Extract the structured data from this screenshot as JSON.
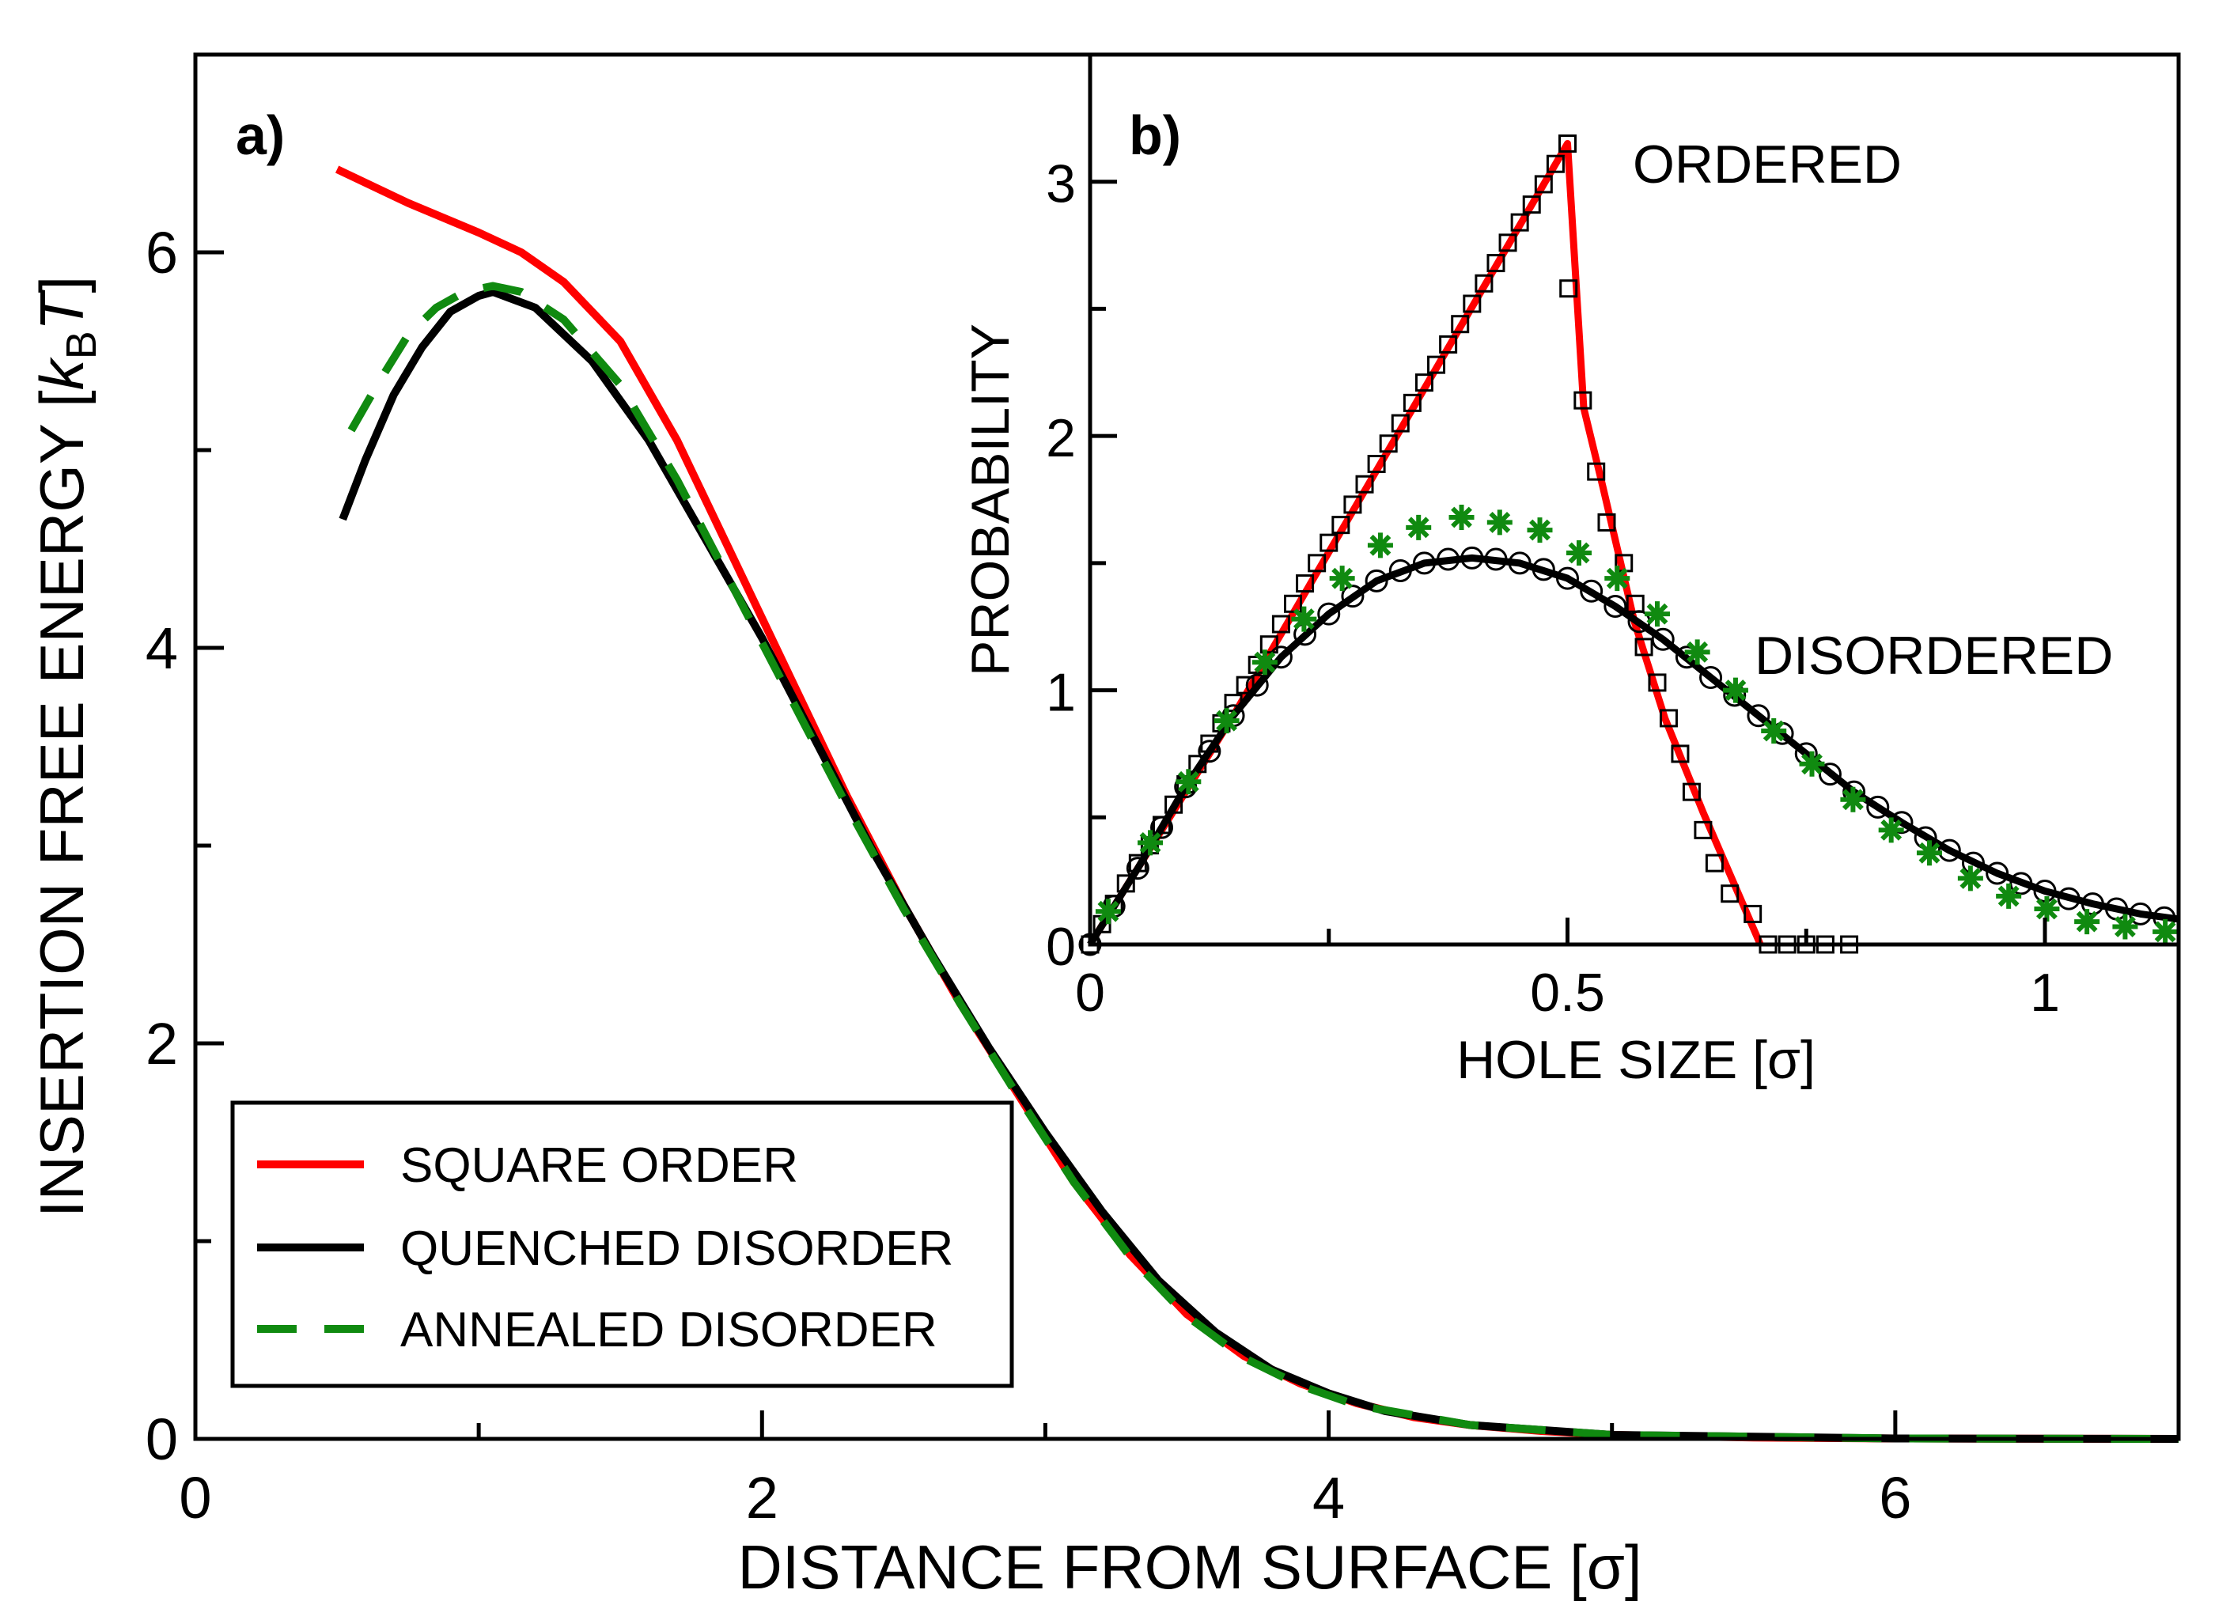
{
  "colors": {
    "red": "#ff0000",
    "black": "#000000",
    "green": "#108a10"
  },
  "chart_data": [
    {
      "type": "line",
      "panel_label": "a)",
      "xlabel": "DISTANCE FROM SURFACE [σ]",
      "ylabel": {
        "pre": "INSERTION FREE ENERGY [",
        "k": "k",
        "sub": "B",
        "T": "T",
        "post": "]"
      },
      "xlim": [
        0,
        7
      ],
      "ylim": [
        0,
        7
      ],
      "xticks": [
        0,
        2,
        4,
        6
      ],
      "xminor": [
        1,
        3,
        5
      ],
      "yticks": [
        0,
        2,
        4,
        6
      ],
      "yminor": [
        1,
        3,
        5
      ],
      "xtick_labels": [
        "0",
        "2",
        "4",
        "6"
      ],
      "ytick_labels": [
        "0",
        "2",
        "4",
        "6"
      ],
      "legend_placement": "bottom-left",
      "series": [
        {
          "name": "SQUARE ORDER",
          "color": "#ff0000",
          "style": "solid",
          "points": [
            [
              0.5,
              6.42
            ],
            [
              0.75,
              6.25
            ],
            [
              1.0,
              6.1
            ],
            [
              1.15,
              6.0
            ],
            [
              1.3,
              5.85
            ],
            [
              1.5,
              5.55
            ],
            [
              1.7,
              5.05
            ],
            [
              1.9,
              4.45
            ],
            [
              2.1,
              3.85
            ],
            [
              2.3,
              3.25
            ],
            [
              2.5,
              2.7
            ],
            [
              2.7,
              2.2
            ],
            [
              2.9,
              1.75
            ],
            [
              3.1,
              1.3
            ],
            [
              3.3,
              0.93
            ],
            [
              3.5,
              0.63
            ],
            [
              3.7,
              0.42
            ],
            [
              3.9,
              0.28
            ],
            [
              4.1,
              0.18
            ],
            [
              4.3,
              0.11
            ],
            [
              4.5,
              0.07
            ],
            [
              4.75,
              0.04
            ],
            [
              5.0,
              0.02
            ],
            [
              5.5,
              0.007
            ],
            [
              6.0,
              0.002
            ],
            [
              7.0,
              0
            ]
          ]
        },
        {
          "name": "QUENCHED DISORDER",
          "color": "#000000",
          "style": "solid",
          "points": [
            [
              0.52,
              4.65
            ],
            [
              0.6,
              4.95
            ],
            [
              0.7,
              5.28
            ],
            [
              0.8,
              5.52
            ],
            [
              0.9,
              5.7
            ],
            [
              1.0,
              5.78
            ],
            [
              1.05,
              5.8
            ],
            [
              1.2,
              5.72
            ],
            [
              1.4,
              5.45
            ],
            [
              1.6,
              5.05
            ],
            [
              1.8,
              4.55
            ],
            [
              2.0,
              4.05
            ],
            [
              2.2,
              3.5
            ],
            [
              2.4,
              2.95
            ],
            [
              2.6,
              2.45
            ],
            [
              2.8,
              1.98
            ],
            [
              3.0,
              1.55
            ],
            [
              3.2,
              1.15
            ],
            [
              3.4,
              0.8
            ],
            [
              3.6,
              0.54
            ],
            [
              3.8,
              0.35
            ],
            [
              4.0,
              0.23
            ],
            [
              4.2,
              0.14
            ],
            [
              4.5,
              0.07
            ],
            [
              5.0,
              0.02
            ],
            [
              6.0,
              0.002
            ],
            [
              7.0,
              0
            ]
          ]
        },
        {
          "name": "ANNEALED DISORDER",
          "color": "#108a10",
          "style": "dashed",
          "points": [
            [
              0.55,
              5.1
            ],
            [
              0.65,
              5.35
            ],
            [
              0.75,
              5.58
            ],
            [
              0.85,
              5.72
            ],
            [
              0.95,
              5.8
            ],
            [
              1.05,
              5.83
            ],
            [
              1.15,
              5.8
            ],
            [
              1.3,
              5.66
            ],
            [
              1.5,
              5.33
            ],
            [
              1.7,
              4.85
            ],
            [
              1.9,
              4.3
            ],
            [
              2.1,
              3.75
            ],
            [
              2.3,
              3.2
            ],
            [
              2.5,
              2.68
            ],
            [
              2.7,
              2.2
            ],
            [
              2.9,
              1.74
            ],
            [
              3.1,
              1.3
            ],
            [
              3.3,
              0.92
            ],
            [
              3.5,
              0.62
            ],
            [
              3.7,
              0.41
            ],
            [
              3.9,
              0.27
            ],
            [
              4.1,
              0.17
            ],
            [
              4.5,
              0.07
            ],
            [
              5.0,
              0.02
            ],
            [
              6.0,
              0.002
            ],
            [
              7.0,
              0
            ]
          ]
        }
      ]
    },
    {
      "type": "line",
      "panel_label": "b)",
      "xlabel": "HOLE SIZE [σ]",
      "ylabel": "PROBABILITY",
      "xlim": [
        0,
        1.14
      ],
      "ylim": [
        0,
        3.5
      ],
      "xticks": [
        0,
        0.5,
        1
      ],
      "xminor": [
        0.25,
        0.75
      ],
      "yticks": [
        0,
        1,
        2,
        3
      ],
      "yminor": [
        0.5,
        1.5,
        2.5
      ],
      "xtick_labels": [
        "0",
        "0.5",
        "1"
      ],
      "ytick_labels": [
        "0",
        "1",
        "2",
        "3"
      ],
      "annotations": [
        {
          "text": "ORDERED",
          "color": "#ff0000"
        },
        {
          "text": "DISORDERED",
          "color": "#000000"
        }
      ],
      "series": [
        {
          "color": "#ff0000",
          "style": "solid",
          "marker": "none",
          "points": [
            [
              0.005,
              0.03
            ],
            [
              0.15,
              0.9
            ],
            [
              0.5,
              3.15
            ],
            [
              0.517,
              2.11
            ],
            [
              0.537,
              1.8
            ],
            [
              0.57,
              1.27
            ],
            [
              0.602,
              0.89
            ],
            [
              0.642,
              0.52
            ],
            [
              0.702,
              0
            ]
          ]
        },
        {
          "color": "#000000",
          "style": "none",
          "marker": "square",
          "points": [
            [
              0,
              0
            ],
            [
              0.0125,
              0.08
            ],
            [
              0.025,
              0.16
            ],
            [
              0.0375,
              0.24
            ],
            [
              0.05,
              0.32
            ],
            [
              0.0625,
              0.39
            ],
            [
              0.075,
              0.47
            ],
            [
              0.0875,
              0.55
            ],
            [
              0.1,
              0.63
            ],
            [
              0.1125,
              0.71
            ],
            [
              0.125,
              0.79
            ],
            [
              0.1375,
              0.87
            ],
            [
              0.15,
              0.95
            ],
            [
              0.1625,
              1.02
            ],
            [
              0.175,
              1.1
            ],
            [
              0.1875,
              1.18
            ],
            [
              0.2,
              1.26
            ],
            [
              0.2125,
              1.34
            ],
            [
              0.225,
              1.42
            ],
            [
              0.2375,
              1.5
            ],
            [
              0.25,
              1.58
            ],
            [
              0.2625,
              1.65
            ],
            [
              0.275,
              1.73
            ],
            [
              0.2875,
              1.81
            ],
            [
              0.3,
              1.89
            ],
            [
              0.3125,
              1.97
            ],
            [
              0.325,
              2.05
            ],
            [
              0.3375,
              2.13
            ],
            [
              0.35,
              2.21
            ],
            [
              0.3625,
              2.28
            ],
            [
              0.375,
              2.36
            ],
            [
              0.3875,
              2.44
            ],
            [
              0.4,
              2.52
            ],
            [
              0.4125,
              2.6
            ],
            [
              0.425,
              2.68
            ],
            [
              0.4375,
              2.76
            ],
            [
              0.45,
              2.84
            ],
            [
              0.4625,
              2.91
            ],
            [
              0.475,
              2.99
            ],
            [
              0.4875,
              3.07
            ],
            [
              0.5,
              3.15
            ],
            [
              0.501,
              2.58
            ],
            [
              0.516,
              2.14
            ],
            [
              0.53,
              1.86
            ],
            [
              0.541,
              1.66
            ],
            [
              0.559,
              1.5
            ],
            [
              0.571,
              1.34
            ],
            [
              0.58,
              1.17
            ],
            [
              0.594,
              1.03
            ],
            [
              0.606,
              0.89
            ],
            [
              0.618,
              0.75
            ],
            [
              0.63,
              0.6
            ],
            [
              0.642,
              0.45
            ],
            [
              0.654,
              0.32
            ],
            [
              0.67,
              0.2
            ],
            [
              0.694,
              0.12
            ],
            [
              0.71,
              0
            ],
            [
              0.73,
              0
            ],
            [
              0.75,
              0
            ],
            [
              0.77,
              0
            ],
            [
              0.795,
              0
            ]
          ]
        },
        {
          "color": "#000000",
          "style": "solid",
          "marker": "none",
          "points": [
            [
              0,
              0
            ],
            [
              0.05,
              0.3
            ],
            [
              0.1,
              0.62
            ],
            [
              0.15,
              0.9
            ],
            [
              0.2,
              1.13
            ],
            [
              0.25,
              1.3
            ],
            [
              0.3,
              1.43
            ],
            [
              0.35,
              1.5
            ],
            [
              0.4,
              1.52
            ],
            [
              0.45,
              1.5
            ],
            [
              0.5,
              1.44
            ],
            [
              0.55,
              1.33
            ],
            [
              0.6,
              1.2
            ],
            [
              0.65,
              1.05
            ],
            [
              0.7,
              0.9
            ],
            [
              0.75,
              0.75
            ],
            [
              0.8,
              0.6
            ],
            [
              0.85,
              0.48
            ],
            [
              0.9,
              0.37
            ],
            [
              0.95,
              0.28
            ],
            [
              1.0,
              0.21
            ],
            [
              1.05,
              0.16
            ],
            [
              1.1,
              0.12
            ],
            [
              1.14,
              0.1
            ]
          ]
        },
        {
          "color": "#000000",
          "style": "none",
          "marker": "circle",
          "points": [
            [
              0,
              0
            ],
            [
              0.025,
              0.15
            ],
            [
              0.05,
              0.3
            ],
            [
              0.075,
              0.46
            ],
            [
              0.1,
              0.62
            ],
            [
              0.125,
              0.76
            ],
            [
              0.15,
              0.9
            ],
            [
              0.175,
              1.02
            ],
            [
              0.2,
              1.13
            ],
            [
              0.225,
              1.22
            ],
            [
              0.25,
              1.3
            ],
            [
              0.275,
              1.37
            ],
            [
              0.3,
              1.43
            ],
            [
              0.325,
              1.47
            ],
            [
              0.35,
              1.5
            ],
            [
              0.375,
              1.515
            ],
            [
              0.4,
              1.52
            ],
            [
              0.425,
              1.515
            ],
            [
              0.45,
              1.5
            ],
            [
              0.475,
              1.475
            ],
            [
              0.5,
              1.44
            ],
            [
              0.525,
              1.39
            ],
            [
              0.55,
              1.33
            ],
            [
              0.575,
              1.27
            ],
            [
              0.6,
              1.2
            ],
            [
              0.625,
              1.13
            ],
            [
              0.65,
              1.05
            ],
            [
              0.675,
              0.98
            ],
            [
              0.7,
              0.9
            ],
            [
              0.725,
              0.83
            ],
            [
              0.75,
              0.75
            ],
            [
              0.775,
              0.67
            ],
            [
              0.8,
              0.6
            ],
            [
              0.825,
              0.54
            ],
            [
              0.85,
              0.48
            ],
            [
              0.875,
              0.42
            ],
            [
              0.9,
              0.37
            ],
            [
              0.925,
              0.32
            ],
            [
              0.95,
              0.28
            ],
            [
              0.975,
              0.24
            ],
            [
              1.0,
              0.21
            ],
            [
              1.025,
              0.18
            ],
            [
              1.05,
              0.16
            ],
            [
              1.075,
              0.14
            ],
            [
              1.1,
              0.12
            ],
            [
              1.125,
              0.105
            ]
          ]
        },
        {
          "color": "#108a10",
          "style": "none",
          "marker": "star",
          "points": [
            [
              0.019,
              0.13
            ],
            [
              0.063,
              0.4
            ],
            [
              0.103,
              0.64
            ],
            [
              0.143,
              0.88
            ],
            [
              0.183,
              1.11
            ],
            [
              0.224,
              1.28
            ],
            [
              0.264,
              1.44
            ],
            [
              0.304,
              1.57
            ],
            [
              0.344,
              1.64
            ],
            [
              0.389,
              1.68
            ],
            [
              0.429,
              1.66
            ],
            [
              0.471,
              1.63
            ],
            [
              0.512,
              1.54
            ],
            [
              0.552,
              1.44
            ],
            [
              0.594,
              1.3
            ],
            [
              0.636,
              1.15
            ],
            [
              0.676,
              1.0
            ],
            [
              0.716,
              0.84
            ],
            [
              0.756,
              0.71
            ],
            [
              0.799,
              0.57
            ],
            [
              0.839,
              0.45
            ],
            [
              0.879,
              0.36
            ],
            [
              0.922,
              0.26
            ],
            [
              0.962,
              0.19
            ],
            [
              1.002,
              0.14
            ],
            [
              1.044,
              0.09
            ],
            [
              1.084,
              0.07
            ],
            [
              1.126,
              0.05
            ]
          ]
        }
      ]
    }
  ]
}
